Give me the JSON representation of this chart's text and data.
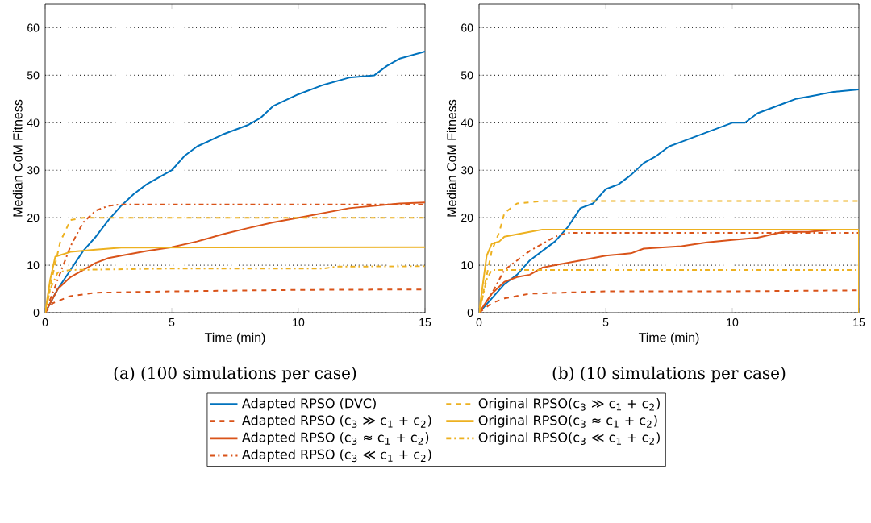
{
  "chart_data": [
    {
      "type": "line",
      "xlabel": "Time (min)",
      "ylabel": "Median CoM Fitness",
      "annotations": [
        "(a) (100 simulations per case)"
      ],
      "xlim": [
        0,
        15
      ],
      "ylim": [
        0,
        65
      ],
      "xticks": [
        0,
        5,
        10,
        15
      ],
      "yticks": [
        0,
        10,
        20,
        30,
        40,
        50,
        60
      ],
      "grid": "y",
      "legend": "bottom",
      "series": [
        {
          "name": "Adapted RPSO (DVC)",
          "color": "#0072bd",
          "line_style": "solid",
          "x": [
            0,
            0.5,
            1,
            1.5,
            2,
            2.5,
            3,
            3.5,
            4,
            4.5,
            5,
            5.5,
            6,
            7,
            8,
            8.5,
            9,
            10,
            11,
            12,
            13,
            13.5,
            14,
            15
          ],
          "values": [
            0,
            5,
            9,
            13,
            16,
            19.5,
            22.5,
            25,
            27,
            28.5,
            30,
            33,
            35,
            37.5,
            39.5,
            41,
            43.5,
            46,
            48,
            49.5,
            50,
            52,
            53.5,
            55
          ]
        },
        {
          "name": "Adapted RPSO (c$_{3}$ ≫ c$_{1}$ + c$_{2}$)",
          "color": "#d95319",
          "line_style": "dashed",
          "x": [
            0,
            0.3,
            1,
            2,
            5,
            10,
            15
          ],
          "values": [
            0,
            2,
            3.5,
            4.2,
            4.5,
            4.8,
            4.9
          ]
        },
        {
          "name": "Adapted RPSO (c$_{3}$ ≈ c$_{1}$ + c$_{2}$)",
          "color": "#d95319",
          "line_style": "solid",
          "x": [
            0,
            0.5,
            1,
            1.5,
            2,
            2.5,
            3,
            4,
            5,
            6,
            7,
            8,
            9,
            10,
            11,
            12,
            13,
            14,
            15
          ],
          "values": [
            0,
            5,
            7.5,
            9,
            10.5,
            11.5,
            12,
            13,
            13.8,
            15,
            16.5,
            17.8,
            19,
            20,
            21,
            22,
            22.5,
            23,
            23.2
          ]
        },
        {
          "name": "Adapted RPSO (c$_{3}$ ≪ c$_{1}$ + c$_{2}$)",
          "color": "#d95319",
          "line_style": "dashdot",
          "x": [
            0,
            0.5,
            1,
            1.5,
            2,
            2.5,
            3,
            15
          ],
          "values": [
            0,
            7,
            14,
            19,
            21.5,
            22.5,
            22.8,
            22.8
          ]
        },
        {
          "name": "Original RPSO(c$_{3}$ ≫ c$_{1}$ + c$_{2}$)",
          "color": "#edb120",
          "line_style": "dashed",
          "x": [
            0,
            0.3,
            0.6,
            1,
            1.5,
            15
          ],
          "values": [
            0,
            8,
            15,
            19.5,
            20,
            20
          ]
        },
        {
          "name": "Original RPSO(c$_{3}$ ≈ c$_{1}$ + c$_{2}$)",
          "color": "#edb120",
          "line_style": "solid",
          "x": [
            0,
            0.2,
            0.4,
            1,
            2,
            3,
            15
          ],
          "values": [
            0,
            7,
            11.8,
            12.8,
            13.3,
            13.7,
            13.8
          ]
        },
        {
          "name": "Original RPSO(c$_{3}$ ≪ c$_{1}$ + c$_{2}$)",
          "color": "#edb120",
          "line_style": "dashdot",
          "x": [
            0,
            0.2,
            0.5,
            1,
            5,
            11,
            11.5,
            15
          ],
          "values": [
            0,
            5,
            8.5,
            9,
            9.3,
            9.3,
            9.7,
            9.8
          ]
        }
      ]
    },
    {
      "type": "line",
      "xlabel": "Time (min)",
      "ylabel": "Median CoM Fitness",
      "annotations": [
        "(b) (10 simulations per case)"
      ],
      "xlim": [
        0,
        15
      ],
      "ylim": [
        0,
        65
      ],
      "xticks": [
        0,
        5,
        10,
        15
      ],
      "yticks": [
        0,
        10,
        20,
        30,
        40,
        50,
        60
      ],
      "grid": "y",
      "series": [
        {
          "color": "#0072bd",
          "line_style": "solid",
          "x": [
            0,
            0.5,
            1,
            1.5,
            2,
            2.5,
            3,
            3.5,
            4,
            4.5,
            5,
            5.5,
            6,
            6.5,
            7,
            7.5,
            8,
            9,
            10,
            10.5,
            11,
            12,
            12.5,
            13,
            14,
            15
          ],
          "values": [
            0,
            3,
            6,
            8,
            11,
            13,
            15,
            18,
            22,
            23,
            26,
            27,
            29,
            31.5,
            33,
            35,
            36,
            38,
            40,
            40,
            42,
            44,
            45,
            45.5,
            46.5,
            47
          ]
        },
        {
          "color": "#d95319",
          "line_style": "dashed",
          "x": [
            0,
            0.5,
            1,
            2,
            5,
            10,
            15,
            15
          ],
          "values": [
            0,
            2,
            3,
            4,
            4.5,
            4.5,
            4.7,
            0
          ]
        },
        {
          "color": "#d95319",
          "line_style": "solid",
          "x": [
            0,
            0.5,
            1,
            1.5,
            2,
            2.5,
            3,
            4,
            5,
            6,
            6.5,
            8,
            9,
            10,
            11,
            12,
            13,
            14,
            15
          ],
          "values": [
            0,
            4,
            6.5,
            7.5,
            8,
            9.5,
            10,
            11,
            12,
            12.5,
            13.5,
            14,
            14.8,
            15.3,
            15.8,
            17,
            17,
            17.5,
            17.5
          ]
        },
        {
          "color": "#d95319",
          "line_style": "dashdot",
          "x": [
            0,
            0.5,
            1,
            1.5,
            2,
            2.5,
            3,
            3.5,
            15,
            15
          ],
          "values": [
            0,
            4,
            9,
            11,
            13,
            14.5,
            16,
            16.8,
            16.8,
            0
          ]
        },
        {
          "color": "#edb120",
          "line_style": "dashed",
          "x": [
            0,
            0.5,
            0.8,
            1,
            1.5,
            2.5,
            15
          ],
          "values": [
            0,
            13,
            17,
            21,
            23,
            23.5,
            23.5
          ]
        },
        {
          "color": "#edb120",
          "line_style": "solid",
          "x": [
            0,
            0.3,
            0.5,
            0.8,
            1,
            1.5,
            2,
            2.5,
            15,
            15
          ],
          "values": [
            0,
            12,
            14.5,
            15,
            16,
            16.5,
            17,
            17.5,
            17.5,
            0
          ]
        },
        {
          "color": "#edb120",
          "line_style": "dashdot",
          "x": [
            0,
            0.3,
            0.5,
            15,
            15
          ],
          "values": [
            0,
            7,
            9,
            9,
            0
          ]
        }
      ]
    }
  ]
}
